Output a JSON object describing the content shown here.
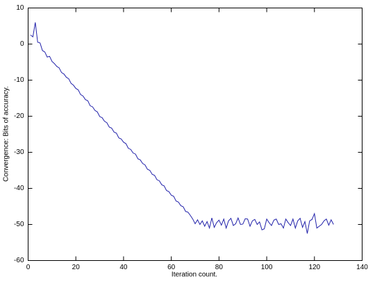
{
  "chart_data": {
    "type": "line",
    "x_label": "Iteration count.",
    "y_label": "Convergence: Bits of accuracy.",
    "x": [
      1,
      2,
      3,
      4,
      5,
      6,
      7,
      8,
      9,
      10,
      11,
      12,
      13,
      14,
      15,
      16,
      17,
      18,
      19,
      20,
      21,
      22,
      23,
      24,
      25,
      26,
      27,
      28,
      29,
      30,
      31,
      32,
      33,
      34,
      35,
      36,
      37,
      38,
      39,
      40,
      41,
      42,
      43,
      44,
      45,
      46,
      47,
      48,
      49,
      50,
      51,
      52,
      53,
      54,
      55,
      56,
      57,
      58,
      59,
      60,
      61,
      62,
      63,
      64,
      65,
      66,
      67,
      68,
      69,
      70,
      71,
      72,
      73,
      74,
      75,
      76,
      77,
      78,
      79,
      80,
      81,
      82,
      83,
      84,
      85,
      86,
      87,
      88,
      89,
      90,
      91,
      92,
      93,
      94,
      95,
      96,
      97,
      98,
      99,
      100,
      101,
      102,
      103,
      104,
      105,
      106,
      107,
      108,
      109,
      110,
      111,
      112,
      113,
      114,
      115,
      116,
      117,
      118,
      119,
      120,
      121,
      122,
      123,
      124,
      125,
      126,
      127,
      128
    ],
    "series": [
      {
        "color": "#2222aa",
        "values": [
          2.5,
          2,
          6,
          0.5,
          0.3,
          -1.8,
          -2.2,
          -3.6,
          -3.4,
          -4.8,
          -5.4,
          -6.2,
          -6.6,
          -7.9,
          -8.3,
          -9.2,
          -9.6,
          -10.9,
          -11.4,
          -12.3,
          -12.7,
          -14.0,
          -14.4,
          -15.4,
          -15.7,
          -17.1,
          -17.4,
          -18.4,
          -18.8,
          -20.1,
          -20.4,
          -21.4,
          -21.8,
          -23.0,
          -23.3,
          -24.4,
          -24.7,
          -26.0,
          -26.3,
          -27.2,
          -27.6,
          -28.9,
          -29.2,
          -30.2,
          -30.5,
          -31.8,
          -32.1,
          -33.1,
          -33.5,
          -34.7,
          -35.0,
          -36.1,
          -36.4,
          -37.6,
          -37.9,
          -39.0,
          -39.3,
          -40.6,
          -40.9,
          -41.9,
          -42.2,
          -43.5,
          -43.8,
          -44.8,
          -45.1,
          -46.4,
          -46.6,
          -47.5,
          -48.5,
          -49.8,
          -48.7,
          -50.0,
          -49.0,
          -50.5,
          -49.2,
          -51.0,
          -48.2,
          -50.8,
          -49.5,
          -48.8,
          -50.2,
          -48.5,
          -51.0,
          -49.0,
          -48.3,
          -50.3,
          -49.8,
          -48.2,
          -50.0,
          -49.9,
          -48.4,
          -48.5,
          -50.5,
          -49.0,
          -48.6,
          -50.0,
          -49.3,
          -51.5,
          -51.2,
          -48.5,
          -49.5,
          -50.3,
          -48.8,
          -48.5,
          -50.0,
          -49.8,
          -51.0,
          -48.5,
          -49.5,
          -50.3,
          -48.5,
          -51.0,
          -49.0,
          -48.3,
          -50.8,
          -49.2,
          -52.5,
          -49.0,
          -48.6,
          -47.0,
          -51.0,
          -50.5,
          -50.0,
          -49.0,
          -48.5,
          -50.2,
          -48.7,
          -50.0
        ]
      }
    ],
    "xlim": [
      0,
      140
    ],
    "xticks": [
      0,
      20,
      40,
      60,
      80,
      100,
      120,
      140
    ],
    "ylim": [
      -60,
      10
    ],
    "yticks": [
      10,
      0,
      -10,
      -20,
      -30,
      -40,
      -50,
      -60
    ]
  }
}
